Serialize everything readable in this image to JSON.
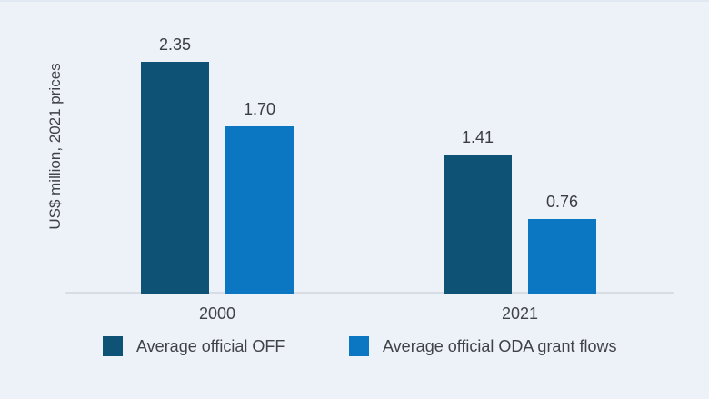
{
  "colors": {
    "background": "#edf1f8",
    "top_border": "#e2e8f2",
    "axis_line": "#d8dce4",
    "text": "#3f4348",
    "series_off": "#0e5276",
    "series_oda": "#0b76c2"
  },
  "chart_data": {
    "type": "bar",
    "categories": [
      "2000",
      "2021"
    ],
    "series": [
      {
        "name": "Average official OFF",
        "color_key": "series_off",
        "values": [
          2.35,
          1.41
        ],
        "labels": [
          "2.35",
          "1.41"
        ]
      },
      {
        "name": "Average official ODA grant flows",
        "color_key": "series_oda",
        "values": [
          1.7,
          0.76
        ],
        "labels": [
          "1.70",
          "0.76"
        ]
      }
    ],
    "title": "",
    "xlabel": "",
    "ylabel": "US$ million, 2021 prices",
    "ylim": [
      0,
      2.4
    ],
    "grid": false,
    "legend_position": "bottom",
    "value_labels_shown": true
  },
  "legend": {
    "items": [
      {
        "label": "Average official OFF",
        "color_key": "series_off"
      },
      {
        "label": "Average official ODA grant flows",
        "color_key": "series_oda"
      }
    ]
  }
}
